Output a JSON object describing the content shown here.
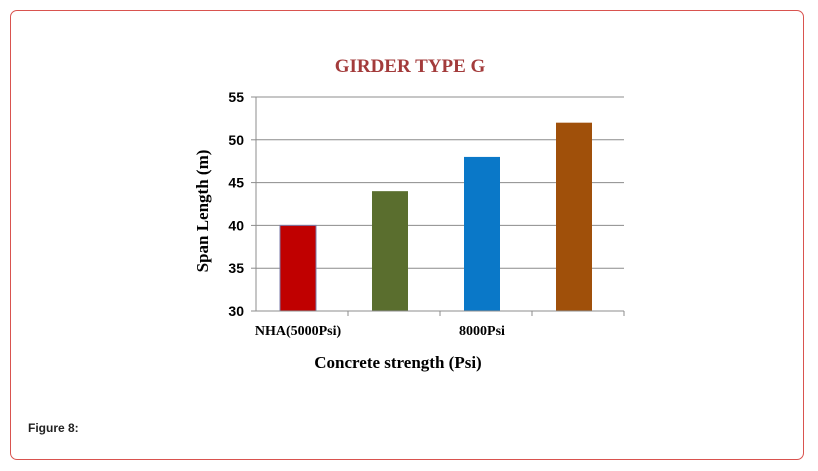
{
  "caption": "Figure 8:",
  "colors": {
    "border": "#d9534f",
    "title": "#a33b3b",
    "grid": "#8c8c8c"
  },
  "chart_data": {
    "type": "bar",
    "title": "GIRDER TYPE G",
    "xlabel": "Concrete strength (Psi)",
    "ylabel": "Span Length (m)",
    "ylim": [
      30,
      55
    ],
    "yticks": [
      30,
      35,
      40,
      45,
      50,
      55
    ],
    "grid": true,
    "legend": "none",
    "categories": [
      "NHA(5000Psi)",
      "",
      "8000Psi",
      ""
    ],
    "values": [
      40,
      44,
      48,
      52
    ],
    "bar_colors": [
      "#c00000",
      "#5a6e2e",
      "#0a78c8",
      "#a0500a"
    ]
  }
}
